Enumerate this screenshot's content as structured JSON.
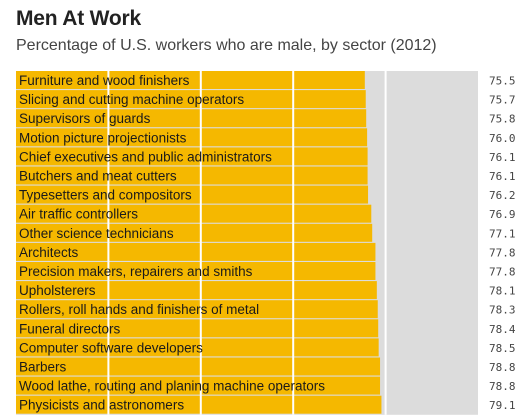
{
  "title": "Men At Work",
  "subtitle": "Percentage of U.S. workers who are male, by sector (2012)",
  "colors": {
    "bar": "#f5b800",
    "track": "#dcdcdc",
    "gridline": "#ffffff"
  },
  "chart_data": {
    "type": "bar",
    "orientation": "horizontal",
    "categories": [
      "Furniture and wood finishers",
      "Slicing and cutting machine operators",
      "Supervisors of guards",
      "Motion picture projectionists",
      "Chief executives and public administrators",
      "Butchers and meat cutters",
      "Typesetters and compositors",
      "Air traffic controllers",
      "Other science technicians",
      "Architects",
      "Precision makers, repairers and smiths",
      "Upholsterers",
      "Rollers, roll hands and finishers of metal",
      "Funeral directors",
      "Computer software developers",
      "Barbers",
      "Wood lathe, routing and planing machine operators",
      "Physicists and astronomers"
    ],
    "values": [
      75.5,
      75.7,
      75.8,
      76.0,
      76.1,
      76.1,
      76.2,
      76.9,
      77.1,
      77.8,
      77.8,
      78.1,
      78.3,
      78.4,
      78.5,
      78.8,
      78.8,
      79.1
    ],
    "value_labels": [
      "75.5",
      "75.7",
      "75.8",
      "76.0",
      "76.1",
      "76.1",
      "76.2",
      "76.9",
      "77.1",
      "77.8",
      "77.8",
      "78.1",
      "78.3",
      "78.4",
      "78.5",
      "78.8",
      "78.8",
      "79.1"
    ],
    "xlim": [
      0,
      100
    ],
    "gridlines": [
      20,
      40,
      60,
      80
    ],
    "grid": true,
    "legend": "none"
  }
}
